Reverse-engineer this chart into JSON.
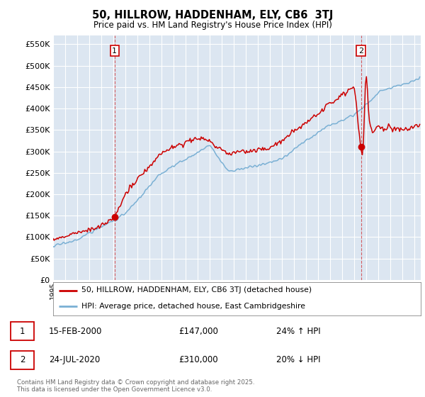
{
  "title": "50, HILLROW, HADDENHAM, ELY, CB6  3TJ",
  "subtitle": "Price paid vs. HM Land Registry's House Price Index (HPI)",
  "ylim": [
    0,
    570000
  ],
  "yticks": [
    0,
    50000,
    100000,
    150000,
    200000,
    250000,
    300000,
    350000,
    400000,
    450000,
    500000,
    550000
  ],
  "xlim_start": 1995.0,
  "xlim_end": 2025.5,
  "bg_color": "#dce6f1",
  "grid_color": "#ffffff",
  "line1_color": "#cc0000",
  "line2_color": "#7ab0d4",
  "sale1_x": 2000.1,
  "sale1_y": 147000,
  "sale2_x": 2020.55,
  "sale2_y": 310000,
  "sale1_date": "15-FEB-2000",
  "sale1_price": "£147,000",
  "sale1_pct": "24% ↑ HPI",
  "sale2_date": "24-JUL-2020",
  "sale2_price": "£310,000",
  "sale2_pct": "20% ↓ HPI",
  "legend_label1": "50, HILLROW, HADDENHAM, ELY, CB6 3TJ (detached house)",
  "legend_label2": "HPI: Average price, detached house, East Cambridgeshire",
  "footer": "Contains HM Land Registry data © Crown copyright and database right 2025.\nThis data is licensed under the Open Government Licence v3.0."
}
